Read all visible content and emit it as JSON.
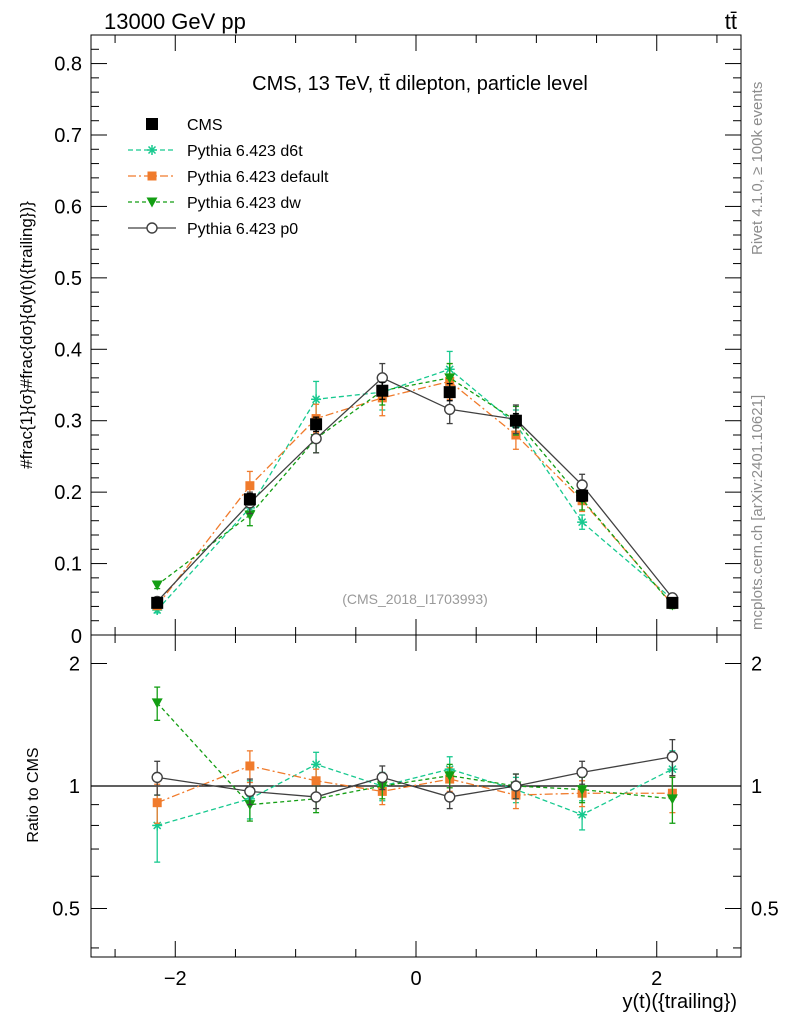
{
  "header": {
    "energy_label": "13000 GeV pp",
    "process_label": "tt̄",
    "side_label_top": "Rivet 4.1.0, ≥ 100k events",
    "side_label_bottom": "mcplots.cern.ch [arXiv:2401.10621]",
    "watermark": "(CMS_2018_I1703993)"
  },
  "chart_data": [
    {
      "panel": "main",
      "type": "line",
      "title": "CMS, 13 TeV, tt̄ dilepton, particle level",
      "xlabel": "y(t)({trailing})",
      "ylabel": "#frac{1}{σ}#frac{dσ}{dy(t)({trailing})}",
      "xlim": [
        -2.7,
        2.7
      ],
      "ylim": [
        0,
        0.84
      ],
      "yticks": [
        "0.1",
        "0.2",
        "0.3",
        "0.4",
        "0.5",
        "0.6",
        "0.7",
        "0.8"
      ],
      "ytick_values": [
        0.1,
        0.2,
        0.3,
        0.4,
        0.5,
        0.6,
        0.7,
        0.8
      ],
      "y_zero_tick": "0",
      "x": [
        -2.15,
        -1.38,
        -0.83,
        -0.28,
        0.28,
        0.83,
        1.38,
        2.13
      ],
      "series": [
        {
          "name": "CMS",
          "color": "#000000",
          "style": "data",
          "values": [
            0.045,
            0.19,
            0.295,
            0.342,
            0.34,
            0.3,
            0.195,
            0.045
          ],
          "errors": [
            0.004,
            0.008,
            0.01,
            0.012,
            0.012,
            0.01,
            0.008,
            0.004
          ]
        },
        {
          "name": "Pythia 6.423 d6t",
          "color": "#17c98f",
          "style": "star",
          "values": [
            0.035,
            0.178,
            0.33,
            0.34,
            0.372,
            0.295,
            0.158,
            0.05
          ],
          "errors": [
            0.004,
            0.01,
            0.025,
            0.025,
            0.025,
            0.02,
            0.01,
            0.004
          ]
        },
        {
          "name": "Pythia 6.423 default",
          "color": "#f07b2c",
          "style": "square",
          "values": [
            0.041,
            0.209,
            0.303,
            0.332,
            0.355,
            0.28,
            0.188,
            0.043
          ],
          "errors": [
            0.004,
            0.02,
            0.02,
            0.025,
            0.025,
            0.02,
            0.015,
            0.004
          ]
        },
        {
          "name": "Pythia 6.423 dw",
          "color": "#139e13",
          "style": "triangle",
          "values": [
            0.07,
            0.168,
            0.275,
            0.342,
            0.36,
            0.3,
            0.19,
            0.042
          ],
          "errors": [
            0.005,
            0.015,
            0.02,
            0.02,
            0.02,
            0.02,
            0.015,
            0.005
          ]
        },
        {
          "name": "Pythia 6.423 p0",
          "color": "#404040",
          "style": "circle",
          "values": [
            0.047,
            0.185,
            0.275,
            0.36,
            0.316,
            0.302,
            0.21,
            0.052
          ],
          "errors": [
            0.004,
            0.015,
            0.02,
            0.02,
            0.02,
            0.02,
            0.015,
            0.004
          ]
        }
      ]
    },
    {
      "panel": "ratio",
      "type": "line",
      "ylabel": "Ratio to CMS",
      "xlim": [
        -2.7,
        2.7
      ],
      "ylim": [
        0.38,
        2.35
      ],
      "xticks": [
        "−2",
        "0",
        "2"
      ],
      "xtick_values": [
        -2,
        0,
        2
      ],
      "yticks": [
        "0.5",
        "1",
        "2"
      ],
      "ytick_values": [
        0.5,
        1,
        2
      ],
      "x": [
        -2.15,
        -1.38,
        -0.83,
        -0.28,
        0.28,
        0.83,
        1.38,
        2.13
      ],
      "series": [
        {
          "name": "Pythia 6.423 d6t",
          "color": "#17c98f",
          "style": "star",
          "values": [
            0.8,
            0.93,
            1.13,
            1.0,
            1.1,
            0.98,
            0.85,
            1.1
          ],
          "errors": [
            0.15,
            0.1,
            0.08,
            0.08,
            0.08,
            0.07,
            0.07,
            0.12
          ]
        },
        {
          "name": "Pythia 6.423 default",
          "color": "#f07b2c",
          "style": "square",
          "values": [
            0.91,
            1.12,
            1.03,
            0.97,
            1.04,
            0.95,
            0.96,
            0.96
          ],
          "errors": [
            0.1,
            0.1,
            0.07,
            0.07,
            0.07,
            0.07,
            0.07,
            0.1
          ]
        },
        {
          "name": "Pythia 6.423 dw",
          "color": "#139e13",
          "style": "triangle",
          "values": [
            1.6,
            0.9,
            0.93,
            1.0,
            1.06,
            1.0,
            0.98,
            0.93
          ],
          "errors": [
            0.15,
            0.08,
            0.07,
            0.07,
            0.07,
            0.07,
            0.07,
            0.12
          ]
        },
        {
          "name": "Pythia 6.423 p0",
          "color": "#404040",
          "style": "circle",
          "values": [
            1.05,
            0.97,
            0.94,
            1.05,
            0.94,
            1.0,
            1.08,
            1.18
          ],
          "errors": [
            0.1,
            0.07,
            0.06,
            0.07,
            0.06,
            0.07,
            0.07,
            0.12
          ]
        }
      ]
    }
  ]
}
